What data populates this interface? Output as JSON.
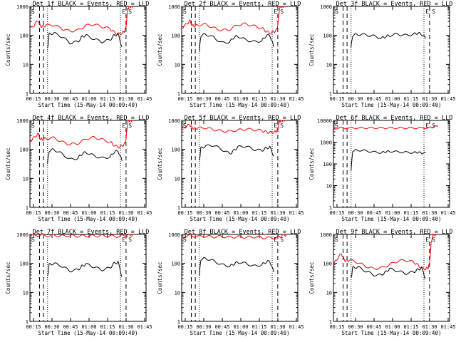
{
  "chart_data": [
    {
      "id": "det1",
      "type": "line",
      "title": "Det 1f BLACK = Events, RED = LLD",
      "xlabel": "Start Time (15-May-14 00:09:40)",
      "ylabel": "Counts/sec",
      "yscale": "log",
      "ylim": [
        1,
        1000
      ],
      "yticks": [
        "1",
        "10",
        "100",
        "1000"
      ],
      "xlim": [
        0.0,
        1.45
      ],
      "xticks": [
        "00:15",
        "00:30",
        "00:45",
        "01:00",
        "01:15",
        "01:30",
        "01:45"
      ],
      "series": [
        {
          "color": "#ff0000",
          "x": [
            0.0,
            0.05,
            0.1,
            0.13,
            0.16,
            0.2,
            0.3,
            0.4,
            0.5,
            0.6,
            0.7,
            0.8,
            0.9,
            1.0,
            1.05,
            1.1,
            1.15,
            1.18,
            1.2,
            1.22,
            1.24,
            1.26,
            1.28
          ],
          "y": [
            170,
            220,
            330,
            210,
            200,
            220,
            230,
            170,
            140,
            150,
            220,
            240,
            200,
            170,
            130,
            110,
            120,
            140,
            200,
            800,
            1000,
            1000,
            1000
          ]
        },
        {
          "color": "#000000",
          "x": [
            0.22,
            0.24,
            0.3,
            0.4,
            0.5,
            0.6,
            0.65,
            0.7,
            0.8,
            0.9,
            1.0,
            1.05,
            1.1,
            1.15
          ],
          "y": [
            35,
            110,
            120,
            90,
            55,
            60,
            90,
            100,
            75,
            60,
            70,
            100,
            110,
            40
          ]
        }
      ],
      "vlines_dashed": [
        0.12,
        0.17,
        1.2
      ],
      "vlines_dotted": [
        0.22,
        1.13
      ],
      "markers": [
        "S",
        "E"
      ]
    },
    {
      "id": "det2",
      "type": "line",
      "title": "Det 2f BLACK = Events, RED = LLD",
      "xlabel": "Start Time (15-May-14 00:09:40)",
      "ylabel": "Counts/sec",
      "yscale": "log",
      "ylim": [
        1,
        1000
      ],
      "yticks": [
        "1",
        "10",
        "100",
        "1000"
      ],
      "xlim": [
        0.0,
        1.45
      ],
      "xticks": [
        "00:15",
        "00:30",
        "00:45",
        "01:00",
        "01:15",
        "01:30",
        "01:45"
      ],
      "series": [
        {
          "color": "#ff0000",
          "x": [
            0.0,
            0.05,
            0.1,
            0.13,
            0.16,
            0.2,
            0.3,
            0.4,
            0.5,
            0.6,
            0.7,
            0.8,
            0.9,
            1.0,
            1.05,
            1.1,
            1.15,
            1.18,
            1.2,
            1.22,
            1.24,
            1.26,
            1.28
          ],
          "y": [
            180,
            230,
            320,
            220,
            210,
            230,
            240,
            180,
            150,
            160,
            230,
            250,
            210,
            180,
            140,
            120,
            130,
            150,
            210,
            820,
            1000,
            1000,
            1000
          ]
        },
        {
          "color": "#000000",
          "x": [
            0.22,
            0.24,
            0.3,
            0.4,
            0.5,
            0.6,
            0.65,
            0.7,
            0.8,
            0.9,
            1.0,
            1.05,
            1.1,
            1.15
          ],
          "y": [
            30,
            100,
            110,
            85,
            55,
            60,
            85,
            95,
            70,
            60,
            65,
            95,
            105,
            40
          ]
        }
      ],
      "vlines_dashed": [
        0.12,
        0.17,
        1.2
      ],
      "vlines_dotted": [
        0.22,
        1.13
      ],
      "markers": [
        "S",
        "E"
      ]
    },
    {
      "id": "det3",
      "type": "line",
      "title": "Det 3f BLACK = Events, RED = LLD",
      "xlabel": "Start Time (15-May-14 00:09:40)",
      "ylabel": "Counts/sec",
      "yscale": "log",
      "ylim": [
        1,
        1000
      ],
      "yticks": [
        "1",
        "10",
        "100",
        "1000"
      ],
      "xlim": [
        0.0,
        1.45
      ],
      "xticks": [
        "00:15",
        "00:30",
        "00:45",
        "01:00",
        "01:15",
        "01:30",
        "01:45"
      ],
      "series": [
        {
          "color": "#000000",
          "x": [
            0.22,
            0.24,
            0.3,
            0.4,
            0.5,
            0.6,
            0.65,
            0.7,
            0.8,
            0.9,
            1.0,
            1.05,
            1.1,
            1.15
          ],
          "y": [
            40,
            100,
            110,
            105,
            95,
            80,
            90,
            100,
            110,
            100,
            110,
            120,
            110,
            80
          ]
        }
      ],
      "vlines_dashed": [
        0.12,
        0.17,
        1.2
      ],
      "vlines_dotted": [
        0.22,
        1.13
      ],
      "markers": [
        "S",
        "E"
      ]
    },
    {
      "id": "det4",
      "type": "line",
      "title": "Det 4f BLACK = Events, RED = LLD",
      "xlabel": "Start Time (15-May-14 00:09:40)",
      "ylabel": "Counts/sec",
      "yscale": "log",
      "ylim": [
        1,
        1000
      ],
      "yticks": [
        "1",
        "10",
        "100",
        "1000"
      ],
      "xlim": [
        0.0,
        1.45
      ],
      "xticks": [
        "00:15",
        "00:30",
        "00:45",
        "01:00",
        "01:15",
        "01:30",
        "01:45"
      ],
      "series": [
        {
          "color": "#ff0000",
          "x": [
            0.0,
            0.05,
            0.1,
            0.13,
            0.16,
            0.2,
            0.3,
            0.4,
            0.5,
            0.6,
            0.7,
            0.8,
            0.9,
            1.0,
            1.05,
            1.1,
            1.15,
            1.18,
            1.2,
            1.22,
            1.24,
            1.26,
            1.28
          ],
          "y": [
            190,
            250,
            350,
            230,
            220,
            240,
            250,
            180,
            150,
            160,
            230,
            260,
            220,
            180,
            140,
            120,
            130,
            150,
            220,
            850,
            1000,
            1000,
            1000
          ]
        },
        {
          "color": "#000000",
          "x": [
            0.22,
            0.24,
            0.3,
            0.4,
            0.5,
            0.6,
            0.65,
            0.7,
            0.8,
            0.9,
            1.0,
            1.05,
            1.1,
            1.15
          ],
          "y": [
            35,
            90,
            100,
            70,
            45,
            50,
            70,
            80,
            60,
            50,
            55,
            80,
            90,
            40
          ]
        }
      ],
      "vlines_dashed": [
        0.12,
        0.17,
        1.2
      ],
      "vlines_dotted": [
        0.22,
        1.13
      ],
      "markers": [
        "S",
        "E"
      ]
    },
    {
      "id": "det5",
      "type": "line",
      "title": "Det 5f BLACK = Events, RED = LLD",
      "xlabel": "Start Time (15-May-14 00:09:40)",
      "ylabel": "Counts/sec",
      "yscale": "log",
      "ylim": [
        1,
        1000
      ],
      "yticks": [
        "1",
        "10",
        "100",
        "1000"
      ],
      "xlim": [
        0.0,
        1.45
      ],
      "xticks": [
        "00:15",
        "00:30",
        "00:45",
        "01:00",
        "01:15",
        "01:30",
        "01:45"
      ],
      "series": [
        {
          "color": "#ff0000",
          "x": [
            0.0,
            0.05,
            0.1,
            0.13,
            0.16,
            0.2,
            0.3,
            0.4,
            0.5,
            0.6,
            0.7,
            0.8,
            0.9,
            1.0,
            1.05,
            1.1,
            1.15,
            1.18,
            1.2,
            1.22,
            1.24,
            1.26,
            1.28
          ],
          "y": [
            500,
            600,
            720,
            560,
            520,
            540,
            560,
            480,
            430,
            420,
            460,
            500,
            480,
            440,
            400,
            380,
            390,
            420,
            480,
            900,
            1000,
            1000,
            1000
          ]
        },
        {
          "color": "#000000",
          "x": [
            0.22,
            0.24,
            0.3,
            0.4,
            0.5,
            0.6,
            0.65,
            0.7,
            0.8,
            0.9,
            1.0,
            1.05,
            1.1,
            1.15
          ],
          "y": [
            40,
            110,
            130,
            140,
            100,
            70,
            90,
            120,
            130,
            100,
            90,
            110,
            120,
            60
          ]
        }
      ],
      "vlines_dashed": [
        0.12,
        0.17,
        1.2
      ],
      "vlines_dotted": [
        0.22,
        1.13
      ],
      "markers": [
        "S",
        "E"
      ]
    },
    {
      "id": "det6",
      "type": "line",
      "title": "Det 6f BLACK = Events, RED = LLD",
      "xlabel": "Start Time (15-May-14 00:09:40)",
      "ylabel": "Counts/sec",
      "yscale": "log",
      "ylim": [
        1,
        10000
      ],
      "yticks": [
        "1",
        "10",
        "100",
        "1000",
        "10000"
      ],
      "xlim": [
        0.0,
        1.45
      ],
      "xticks": [
        "00:15",
        "00:30",
        "00:45",
        "01:00",
        "01:15",
        "01:30",
        "01:45"
      ],
      "series": [
        {
          "color": "#ff0000",
          "x": [
            0.0,
            0.1,
            0.2,
            0.3,
            0.4,
            0.5,
            0.6,
            0.7,
            0.8,
            0.9,
            1.0,
            1.1,
            1.2,
            1.25,
            1.3
          ],
          "y": [
            4400,
            4500,
            4500,
            4500,
            4500,
            4500,
            4500,
            4500,
            4500,
            4500,
            4500,
            4500,
            4600,
            5000,
            6000
          ]
        },
        {
          "color": "#000000",
          "x": [
            0.22,
            0.24,
            0.3,
            0.4,
            0.5,
            0.6,
            0.65,
            0.7,
            0.8,
            0.9,
            1.0,
            1.05,
            1.1,
            1.15
          ],
          "y": [
            50,
            400,
            430,
            400,
            350,
            330,
            360,
            380,
            360,
            340,
            330,
            340,
            320,
            310
          ]
        }
      ],
      "vlines_dashed": [
        0.12,
        0.17
      ],
      "vlines_dotted": [
        0.22,
        1.13
      ],
      "markers": [
        "S",
        "E"
      ]
    },
    {
      "id": "det7",
      "type": "line",
      "title": "Det 7f BLACK = Events, RED = LLD",
      "xlabel": "Start Time (15-May-14 00:09:40)",
      "ylabel": "Counts/sec",
      "yscale": "log",
      "ylim": [
        1,
        1000
      ],
      "yticks": [
        "1",
        "10",
        "100",
        "1000"
      ],
      "xlim": [
        0.0,
        1.45
      ],
      "xticks": [
        "00:15",
        "00:30",
        "00:45",
        "01:00",
        "01:15",
        "01:30",
        "01:45"
      ],
      "series": [
        {
          "color": "#ff0000",
          "x": [
            0.0,
            0.1,
            0.2,
            0.3,
            0.4,
            0.5,
            0.6,
            0.7,
            0.8,
            0.9,
            1.0,
            1.1,
            1.2,
            1.25,
            1.3
          ],
          "y": [
            900,
            950,
            900,
            920,
            880,
            900,
            870,
            900,
            880,
            900,
            880,
            850,
            900,
            950,
            980
          ]
        },
        {
          "color": "#000000",
          "x": [
            0.22,
            0.24,
            0.3,
            0.4,
            0.5,
            0.6,
            0.65,
            0.7,
            0.8,
            0.9,
            1.0,
            1.05,
            1.1,
            1.15
          ],
          "y": [
            35,
            90,
            100,
            80,
            55,
            60,
            80,
            95,
            75,
            60,
            70,
            100,
            110,
            35
          ]
        }
      ],
      "vlines_dashed": [
        0.12,
        0.17,
        1.2
      ],
      "vlines_dotted": [
        0.22,
        1.13
      ],
      "markers": [
        "S",
        "E"
      ]
    },
    {
      "id": "det8",
      "type": "line",
      "title": "Det 8f BLACK = Events, RED = LLD",
      "xlabel": "Start Time (15-May-14 00:09:40)",
      "ylabel": "Counts/sec",
      "yscale": "log",
      "ylim": [
        1,
        1000
      ],
      "yticks": [
        "1",
        "10",
        "100",
        "1000"
      ],
      "xlim": [
        0.0,
        1.45
      ],
      "xticks": [
        "00:15",
        "00:30",
        "00:45",
        "01:00",
        "01:15",
        "01:30",
        "01:45"
      ],
      "series": [
        {
          "color": "#ff0000",
          "x": [
            0.0,
            0.1,
            0.2,
            0.3,
            0.4,
            0.5,
            0.6,
            0.7,
            0.8,
            0.9,
            1.0,
            1.1,
            1.2,
            1.25,
            1.3
          ],
          "y": [
            800,
            900,
            850,
            870,
            820,
            850,
            800,
            830,
            800,
            820,
            780,
            750,
            800,
            900,
            950
          ]
        },
        {
          "color": "#000000",
          "x": [
            0.22,
            0.24,
            0.3,
            0.4,
            0.5,
            0.6,
            0.65,
            0.7,
            0.8,
            0.9,
            1.0,
            1.05,
            1.1,
            1.15
          ],
          "y": [
            40,
            140,
            150,
            120,
            90,
            80,
            95,
            110,
            100,
            80,
            90,
            110,
            120,
            50
          ]
        }
      ],
      "vlines_dashed": [
        0.12,
        0.17,
        1.2
      ],
      "vlines_dotted": [
        0.22,
        1.13
      ],
      "markers": [
        "S",
        "E"
      ]
    },
    {
      "id": "det9",
      "type": "line",
      "title": "Det 9f BLACK = Events, RED = LLD",
      "xlabel": "Start Time (15-May-14 00:09:40)",
      "ylabel": "Counts/sec",
      "yscale": "log",
      "ylim": [
        1,
        1000
      ],
      "yticks": [
        "1",
        "10",
        "100",
        "1000"
      ],
      "xlim": [
        0.0,
        1.45
      ],
      "xticks": [
        "00:15",
        "00:30",
        "00:45",
        "01:00",
        "01:15",
        "01:30",
        "01:45"
      ],
      "series": [
        {
          "color": "#ff0000",
          "x": [
            0.0,
            0.05,
            0.1,
            0.13,
            0.16,
            0.2,
            0.3,
            0.4,
            0.5,
            0.6,
            0.7,
            0.8,
            0.9,
            1.0,
            1.05,
            1.1,
            1.15,
            1.18,
            1.2,
            1.22,
            1.24,
            1.26,
            1.28
          ],
          "y": [
            90,
            150,
            220,
            140,
            120,
            130,
            110,
            80,
            65,
            70,
            90,
            120,
            130,
            110,
            90,
            70,
            65,
            70,
            100,
            500,
            1000,
            1000,
            1000
          ]
        },
        {
          "color": "#000000",
          "x": [
            0.22,
            0.24,
            0.3,
            0.4,
            0.5,
            0.6,
            0.65,
            0.7,
            0.8,
            0.9,
            1.0,
            1.05,
            1.1,
            1.15
          ],
          "y": [
            30,
            70,
            75,
            55,
            40,
            40,
            50,
            65,
            55,
            45,
            50,
            60,
            70,
            30
          ]
        }
      ],
      "vlines_dashed": [
        0.12,
        0.17,
        1.2
      ],
      "vlines_dotted": [
        0.22,
        1.13
      ],
      "markers": [
        "S",
        "E"
      ]
    }
  ]
}
